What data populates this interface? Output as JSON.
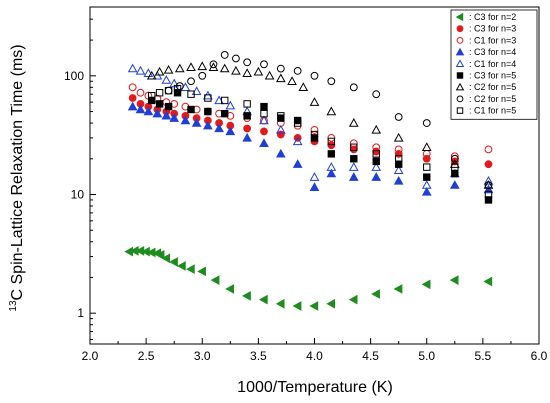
{
  "chart_data": {
    "type": "scatter",
    "xlabel": "1000/Temperature (K)",
    "ylabel": "13C Spin-Lattice Relaxation Time (ms)",
    "ylabel_parts": {
      "superscript": "13",
      "rest": "C Spin-Lattice Relaxation Time (ms)"
    },
    "xlim": [
      2.0,
      6.0
    ],
    "ylim": [
      0.55,
      380
    ],
    "yscale": "log",
    "x_ticks": [
      "2.0",
      "2.5",
      "3.0",
      "3.5",
      "4.0",
      "4.5",
      "5.0",
      "5.5",
      "6.0"
    ],
    "y_ticks": [
      "1",
      "10",
      "100"
    ],
    "y_tick_values": [
      1,
      10,
      100
    ],
    "x_tick_values": [
      2.0,
      2.5,
      3.0,
      3.5,
      4.0,
      4.5,
      5.0,
      5.5,
      6.0
    ],
    "grid": false,
    "legend_position": "top-right",
    "series": [
      {
        "name": ": C3 for n=2",
        "marker": "triangle-left",
        "filled": true,
        "color": "#1e8c1e",
        "x": [
          2.35,
          2.4,
          2.45,
          2.5,
          2.55,
          2.6,
          2.63,
          2.68,
          2.75,
          2.82,
          2.9,
          3.0,
          3.12,
          3.25,
          3.4,
          3.55,
          3.7,
          3.85,
          4.0,
          4.15,
          4.35,
          4.55,
          4.75,
          5.0,
          5.25,
          5.55
        ],
        "y": [
          3.3,
          3.35,
          3.35,
          3.3,
          3.25,
          3.2,
          3.1,
          2.9,
          2.7,
          2.5,
          2.35,
          2.25,
          1.9,
          1.6,
          1.4,
          1.3,
          1.2,
          1.15,
          1.15,
          1.2,
          1.3,
          1.45,
          1.6,
          1.75,
          1.9,
          1.85
        ]
      },
      {
        "name": ": C3 for n=3",
        "marker": "circle",
        "filled": true,
        "color": "#e31a1c",
        "x": [
          2.38,
          2.45,
          2.52,
          2.6,
          2.68,
          2.75,
          2.85,
          2.95,
          3.05,
          3.15,
          3.25,
          3.4,
          3.55,
          3.7,
          3.85,
          4.0,
          4.15,
          4.35,
          4.55,
          4.75,
          5.0,
          5.25,
          5.55
        ],
        "y": [
          65,
          58,
          55,
          52,
          50,
          48,
          46,
          44,
          42,
          40,
          38,
          36,
          34,
          32,
          30,
          28,
          26,
          24,
          23,
          22,
          20,
          19,
          18
        ]
      },
      {
        "name": ": C1 for n=3",
        "marker": "circle",
        "filled": false,
        "color": "#e31a1c",
        "x": [
          2.38,
          2.45,
          2.52,
          2.6,
          2.68,
          2.75,
          2.85,
          2.95,
          3.05,
          3.15,
          3.25,
          3.4,
          3.55,
          3.7,
          3.85,
          4.0,
          4.15,
          4.35,
          4.55,
          4.75,
          5.0,
          5.25,
          5.55
        ],
        "y": [
          80,
          72,
          68,
          64,
          60,
          58,
          55,
          52,
          50,
          48,
          46,
          44,
          42,
          40,
          38,
          35,
          30,
          27,
          25,
          24,
          22,
          21,
          24
        ]
      },
      {
        "name": ": C3 for n=4",
        "marker": "triangle-up",
        "filled": true,
        "color": "#1f3fd6",
        "x": [
          2.38,
          2.45,
          2.52,
          2.6,
          2.68,
          2.75,
          2.85,
          2.95,
          3.05,
          3.15,
          3.25,
          3.4,
          3.55,
          3.7,
          3.85,
          4.0,
          4.15,
          4.35,
          4.55,
          4.75,
          5.0,
          5.25,
          5.55
        ],
        "y": [
          55,
          52,
          50,
          48,
          46,
          44,
          42,
          40,
          38,
          36,
          34,
          30,
          27,
          22,
          18,
          11.5,
          15,
          14,
          14,
          13,
          10.5,
          12,
          11
        ]
      },
      {
        "name": ": C1 for n=4",
        "marker": "triangle-up",
        "filled": false,
        "color": "#1f3fd6",
        "x": [
          2.38,
          2.45,
          2.52,
          2.6,
          2.68,
          2.75,
          2.85,
          2.95,
          3.05,
          3.15,
          3.25,
          3.4,
          3.55,
          3.7,
          3.85,
          4.0,
          4.15,
          4.35,
          4.55,
          4.75,
          5.0,
          5.25,
          5.55
        ],
        "y": [
          115,
          110,
          105,
          100,
          92,
          86,
          80,
          74,
          68,
          62,
          56,
          50,
          42,
          35,
          28,
          14,
          17,
          17,
          17,
          16,
          12,
          15,
          13
        ]
      },
      {
        "name": ": C3 for n=5",
        "marker": "square",
        "filled": true,
        "color": "#000000",
        "x": [
          2.55,
          2.62,
          2.7,
          2.78,
          2.9,
          3.05,
          3.2,
          3.4,
          3.55,
          3.7,
          3.85,
          4.0,
          4.15,
          4.35,
          4.55,
          4.75,
          5.0,
          5.25,
          5.55
        ],
        "y": [
          62,
          58,
          55,
          72,
          52,
          50,
          48,
          46,
          55,
          44,
          42,
          30,
          22,
          20,
          19,
          18,
          14,
          15,
          9
        ]
      },
      {
        "name": ": C2 for n=5",
        "marker": "triangle-up",
        "filled": false,
        "color": "#000000",
        "x": [
          2.55,
          2.62,
          2.7,
          2.8,
          2.9,
          3.0,
          3.1,
          3.2,
          3.3,
          3.4,
          3.5,
          3.6,
          3.7,
          3.8,
          3.9,
          4.0,
          4.15,
          4.35,
          4.55,
          4.75,
          5.0,
          5.25,
          5.55
        ],
        "y": [
          100,
          108,
          112,
          115,
          118,
          120,
          118,
          115,
          110,
          105,
          108,
          100,
          95,
          90,
          80,
          60,
          50,
          40,
          35,
          30,
          25,
          18,
          12
        ]
      },
      {
        "name": ": C2 for n=5",
        "marker": "circle",
        "filled": false,
        "color": "#000000",
        "x": [
          2.7,
          2.8,
          2.9,
          3.0,
          3.1,
          3.2,
          3.3,
          3.4,
          3.55,
          3.7,
          3.85,
          4.0,
          4.15,
          4.35,
          4.55,
          4.75,
          5.0,
          5.25,
          5.55
        ],
        "y": [
          75,
          82,
          90,
          100,
          125,
          150,
          140,
          130,
          125,
          115,
          110,
          100,
          90,
          80,
          70,
          45,
          40,
          20,
          12
        ]
      },
      {
        "name": ": C1 for n=5",
        "marker": "square",
        "filled": false,
        "color": "#000000",
        "x": [
          2.55,
          2.62,
          2.7,
          2.78,
          2.9,
          3.05,
          3.2,
          3.4,
          3.55,
          3.7,
          3.85,
          4.0,
          4.15,
          4.35,
          4.55,
          4.75,
          5.0,
          5.25,
          5.55
        ],
        "y": [
          68,
          72,
          75,
          78,
          70,
          65,
          62,
          58,
          48,
          46,
          40,
          32,
          28,
          25,
          22,
          20,
          17,
          17,
          10
        ]
      }
    ]
  }
}
